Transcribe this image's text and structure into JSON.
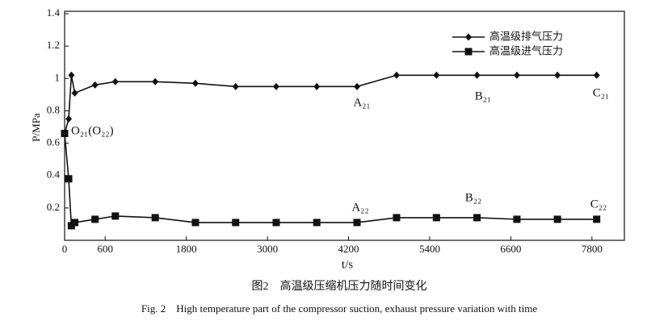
{
  "chart_data": {
    "type": "line",
    "x_label": "t/s",
    "y_label": "P/MPa",
    "x": [
      0,
      60,
      100,
      150,
      450,
      750,
      1340,
      1935,
      2530,
      3130,
      3730,
      4325,
      4910,
      5500,
      6100,
      6690,
      7290,
      7870
    ],
    "series": [
      {
        "name": "高温级排气压力",
        "color": "#111111",
        "marker": "diamond",
        "values": [
          0.66,
          0.75,
          1.02,
          0.91,
          0.96,
          0.98,
          0.98,
          0.97,
          0.95,
          0.95,
          0.95,
          0.95,
          1.02,
          1.02,
          1.02,
          1.02,
          1.02,
          1.02
        ]
      },
      {
        "name": "高温级进气压力",
        "color": "#111111",
        "marker": "square",
        "values": [
          0.66,
          0.38,
          0.09,
          0.11,
          0.13,
          0.15,
          0.14,
          0.11,
          0.11,
          0.11,
          0.11,
          0.11,
          0.14,
          0.14,
          0.14,
          0.13,
          0.13,
          0.13
        ]
      }
    ],
    "xlim": [
      0,
      8280
    ],
    "xticks": [
      0,
      600,
      1800,
      3000,
      4200,
      5400,
      6600,
      7800
    ],
    "ylim": [
      0,
      1.4
    ],
    "yticks": [
      0.2,
      0.4,
      0.6,
      0.8,
      1,
      1.2,
      1.4
    ],
    "legend": "upper right",
    "annotations": [
      "O₂₁(O₂₂)",
      "A₂₁",
      "B₂₁",
      "C₂₁",
      "A₂₂",
      "B₂₂",
      "C₂₂"
    ],
    "caption_cn": "图2　高温级压缩机压力随时间变化",
    "caption_en": "Fig. 2　High temperature part of the compressor suction, exhaust pressure variation with time"
  }
}
